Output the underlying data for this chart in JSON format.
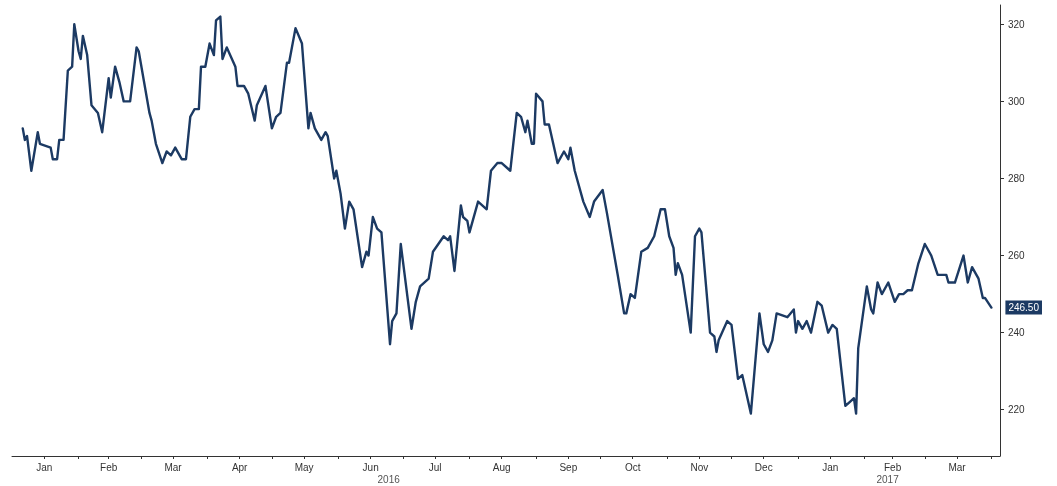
{
  "chart_data": {
    "type": "line",
    "x": [
      "2016-01-06",
      "2016-01-07",
      "2016-01-08",
      "2016-01-10",
      "2016-01-13",
      "2016-01-14",
      "2016-01-19",
      "2016-01-20",
      "2016-01-22",
      "2016-01-23",
      "2016-01-25",
      "2016-01-27",
      "2016-01-29",
      "2016-01-30",
      "2016-02-01",
      "2016-02-02",
      "2016-02-03",
      "2016-02-05",
      "2016-02-07",
      "2016-02-10",
      "2016-02-12",
      "2016-02-15",
      "2016-02-16",
      "2016-02-18",
      "2016-02-20",
      "2016-02-22",
      "2016-02-25",
      "2016-02-28",
      "2016-02-29",
      "2016-03-05",
      "2016-03-06",
      "2016-03-08",
      "2016-03-11",
      "2016-03-13",
      "2016-03-15",
      "2016-03-17",
      "2016-03-20",
      "2016-03-22",
      "2016-03-24",
      "2016-03-26",
      "2016-03-28",
      "2016-03-29",
      "2016-03-31",
      "2016-04-02",
      "2016-04-04",
      "2016-04-05",
      "2016-04-07",
      "2016-04-08",
      "2016-04-10",
      "2016-04-14",
      "2016-04-15",
      "2016-04-18",
      "2016-04-20",
      "2016-04-23",
      "2016-04-24",
      "2016-04-28",
      "2016-05-01",
      "2016-05-03",
      "2016-05-05",
      "2016-05-08",
      "2016-05-09",
      "2016-05-12",
      "2016-05-15",
      "2016-05-18",
      "2016-05-19",
      "2016-05-21",
      "2016-05-24",
      "2016-05-26",
      "2016-05-27",
      "2016-05-30",
      "2016-05-31",
      "2016-06-02",
      "2016-06-04",
      "2016-06-06",
      "2016-06-08",
      "2016-06-12",
      "2016-06-14",
      "2016-06-15",
      "2016-06-17",
      "2016-06-19",
      "2016-06-21",
      "2016-06-25",
      "2016-06-26",
      "2016-06-28",
      "2016-06-30",
      "2016-07-05",
      "2016-07-07",
      "2016-07-09",
      "2016-07-13",
      "2016-07-15",
      "2016-07-20",
      "2016-07-22",
      "2016-07-23",
      "2016-07-25",
      "2016-07-28",
      "2016-07-29",
      "2016-07-31",
      "2016-08-01",
      "2016-08-05",
      "2016-08-09",
      "2016-08-11",
      "2016-08-14",
      "2016-08-16",
      "2016-08-20",
      "2016-08-23",
      "2016-08-25",
      "2016-08-27",
      "2016-08-28",
      "2016-08-30",
      "2016-08-31",
      "2016-09-01",
      "2016-09-04",
      "2016-09-05",
      "2016-09-07",
      "2016-09-11",
      "2016-09-14",
      "2016-09-16",
      "2016-09-17",
      "2016-09-19",
      "2016-09-23",
      "2016-09-26",
      "2016-09-28",
      "2016-10-02",
      "2016-10-04",
      "2016-10-09",
      "2016-10-12",
      "2016-10-13",
      "2016-10-15",
      "2016-10-17",
      "2016-10-20",
      "2016-10-23",
      "2016-10-26",
      "2016-10-29",
      "2016-10-31",
      "2016-11-02",
      "2016-11-04",
      "2016-11-05",
      "2016-11-06",
      "2016-11-08",
      "2016-11-12",
      "2016-11-14",
      "2016-11-16",
      "2016-11-17",
      "2016-11-19",
      "2016-11-21",
      "2016-11-23",
      "2016-11-24",
      "2016-11-25",
      "2016-11-29",
      "2016-12-01",
      "2016-12-04",
      "2016-12-06",
      "2016-12-10",
      "2016-12-14",
      "2016-12-16",
      "2016-12-18",
      "2016-12-20",
      "2016-12-22",
      "2016-12-27",
      "2016-12-30",
      "2016-12-31",
      "2017-01-01",
      "2017-01-03",
      "2017-01-05",
      "2017-01-07",
      "2017-01-10",
      "2017-01-12",
      "2017-01-15",
      "2017-01-17",
      "2017-01-19",
      "2017-01-23",
      "2017-01-25",
      "2017-01-27",
      "2017-01-28",
      "2017-01-29",
      "2017-02-02",
      "2017-02-04",
      "2017-02-05",
      "2017-02-07",
      "2017-02-09",
      "2017-02-12",
      "2017-02-15",
      "2017-02-17",
      "2017-02-19",
      "2017-02-21",
      "2017-02-23",
      "2017-02-26",
      "2017-03-01",
      "2017-03-04",
      "2017-03-07",
      "2017-03-11",
      "2017-03-12",
      "2017-03-15",
      "2017-03-19",
      "2017-03-21",
      "2017-03-23",
      "2017-03-26",
      "2017-03-28",
      "2017-03-29",
      "2017-04-01"
    ],
    "series": [
      {
        "color": "#1c3a63",
        "values": [
          293,
          290,
          291,
          282,
          292,
          289,
          288,
          285,
          285,
          290,
          290,
          308,
          309,
          320,
          313,
          311,
          317,
          312,
          299,
          297,
          292,
          306,
          301,
          309,
          305,
          300,
          300,
          314,
          313,
          297,
          295,
          289,
          284,
          287,
          286,
          288,
          285,
          285,
          296,
          298,
          298,
          309,
          309,
          315,
          312,
          321,
          322,
          311,
          314,
          309,
          304,
          304,
          302,
          295,
          299,
          304,
          293,
          296,
          297,
          310,
          310,
          319,
          315,
          293,
          297,
          293,
          290,
          292,
          291,
          280,
          282,
          276,
          267,
          274,
          272,
          257,
          261,
          260,
          270,
          267,
          266,
          237,
          243,
          245,
          263,
          241,
          248,
          252,
          254,
          261,
          265,
          264,
          265,
          256,
          273,
          270,
          269,
          266,
          274,
          272,
          282,
          284,
          284,
          282,
          297,
          296,
          292,
          295,
          289,
          289,
          302,
          300,
          294,
          294,
          284,
          287,
          285,
          288,
          282,
          274,
          270,
          274,
          277,
          271,
          255,
          245,
          245,
          250,
          249,
          261,
          262,
          265,
          272,
          272,
          265,
          262,
          255,
          258,
          255,
          240,
          265,
          267,
          266,
          253,
          240,
          239,
          235,
          238,
          243,
          242,
          228,
          229,
          219,
          245,
          237,
          235,
          238,
          245,
          244,
          246,
          240,
          243,
          241,
          243,
          240,
          248,
          247,
          240,
          242,
          241,
          221,
          222,
          223,
          219,
          236,
          252,
          246,
          245,
          253,
          250,
          253,
          248,
          250,
          250,
          251,
          251,
          258,
          263,
          260,
          255,
          255,
          253,
          253,
          260,
          253,
          257,
          254,
          249,
          249,
          246.5
        ],
        "value_labels": [
          null,
          null,
          null,
          null,
          null,
          null,
          null,
          null,
          null,
          null,
          null,
          null,
          null,
          null,
          null,
          null,
          null,
          null,
          null,
          null,
          null,
          null,
          null,
          null,
          null,
          null,
          null,
          null,
          null,
          null,
          null,
          null,
          null,
          null,
          null,
          null,
          null,
          null,
          null,
          null,
          null,
          null,
          null,
          null,
          null,
          null,
          null,
          null,
          null,
          null,
          null,
          null,
          null,
          null,
          null,
          null,
          null,
          null,
          null,
          null,
          null,
          null,
          null,
          null,
          null,
          null,
          null,
          null,
          null,
          null,
          null,
          null,
          null,
          null,
          null,
          null,
          null,
          null,
          null,
          null,
          null,
          null,
          null,
          null,
          null,
          null,
          null,
          null,
          null,
          null,
          null,
          null,
          null,
          null,
          null,
          null,
          null,
          null,
          null,
          null,
          null,
          null,
          null,
          null,
          null,
          null,
          null,
          null,
          null,
          null,
          null,
          null,
          null,
          null,
          null,
          null,
          null,
          null,
          null,
          null,
          null,
          null,
          null,
          null,
          null,
          null,
          null,
          null,
          null,
          null,
          null,
          null,
          null,
          null,
          null,
          null,
          null,
          null,
          null,
          null,
          null,
          null,
          null,
          null,
          null,
          null,
          null,
          null,
          null,
          null,
          null,
          null,
          null,
          null,
          null,
          null,
          null,
          null,
          null,
          null,
          null,
          null,
          null,
          null,
          null,
          null,
          null,
          null,
          null,
          null,
          null,
          null,
          null,
          null,
          null,
          null,
          null,
          null,
          null,
          null,
          null,
          null,
          null,
          null,
          null,
          null,
          null,
          null,
          null,
          null,
          null,
          null,
          null,
          null,
          null,
          null,
          null,
          null,
          null,
          "246.50"
        ]
      }
    ],
    "xlim": [
      "2016-01-01",
      "2017-04-05"
    ],
    "xticks": [
      {
        "value": "2016-01-16",
        "label": "Jan"
      },
      {
        "value": "2016-02-01",
        "label": null
      },
      {
        "value": "2016-02-15",
        "label": "Feb"
      },
      {
        "value": "2016-03-01",
        "label": null
      },
      {
        "value": "2016-03-16",
        "label": "Mar"
      },
      {
        "value": "2016-04-01",
        "label": null
      },
      {
        "value": "2016-04-16",
        "label": "Apr"
      },
      {
        "value": "2016-05-01",
        "label": null
      },
      {
        "value": "2016-05-16",
        "label": "May"
      },
      {
        "value": "2016-06-01",
        "label": null
      },
      {
        "value": "2016-06-16",
        "label": "Jun"
      },
      {
        "value": "2016-07-01",
        "label": null
      },
      {
        "value": "2016-07-16",
        "label": "Jul"
      },
      {
        "value": "2016-08-01",
        "label": null
      },
      {
        "value": "2016-08-16",
        "label": "Aug"
      },
      {
        "value": "2016-09-01",
        "label": null
      },
      {
        "value": "2016-09-16",
        "label": "Sep"
      },
      {
        "value": "2016-10-01",
        "label": null
      },
      {
        "value": "2016-10-16",
        "label": "Oct"
      },
      {
        "value": "2016-11-01",
        "label": null
      },
      {
        "value": "2016-11-16",
        "label": "Nov"
      },
      {
        "value": "2016-12-01",
        "label": null
      },
      {
        "value": "2016-12-16",
        "label": "Dec"
      },
      {
        "value": "2017-01-01",
        "label": null
      },
      {
        "value": "2017-01-16",
        "label": "Jan"
      },
      {
        "value": "2017-02-01",
        "label": null
      },
      {
        "value": "2017-02-14",
        "label": "Feb"
      },
      {
        "value": "2017-03-01",
        "label": null
      },
      {
        "value": "2017-03-16",
        "label": "Mar"
      },
      {
        "value": "2017-04-01",
        "label": null
      }
    ],
    "ylim": [
      208,
      325
    ],
    "yticks": [
      220,
      240,
      260,
      280,
      300,
      320
    ],
    "annotations": [
      "2016",
      "2017"
    ],
    "grid": false,
    "marker": "none",
    "line_style": "solid"
  }
}
